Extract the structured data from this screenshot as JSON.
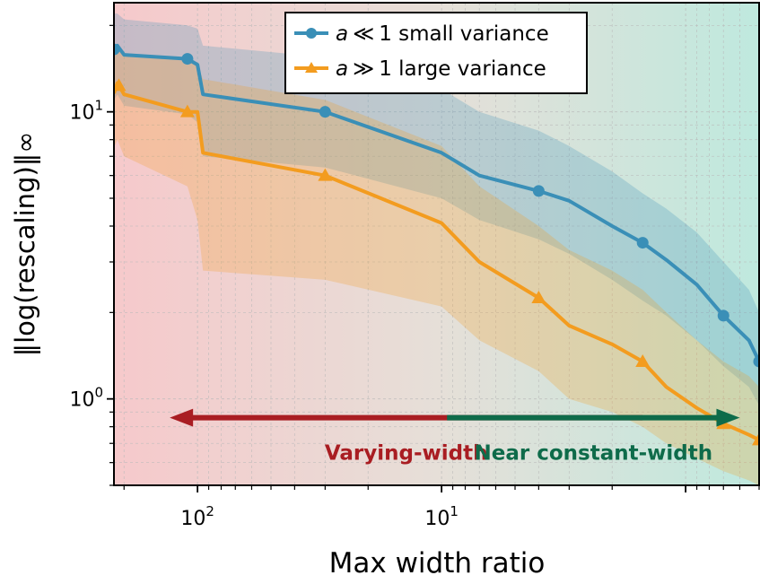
{
  "chart_data": {
    "type": "line",
    "title": "",
    "xlabel": "Max width ratio",
    "ylabel": "‖log(rescaling)‖∞",
    "x_scale": "log",
    "x_reversed": true,
    "y_scale": "log",
    "xlim": [
      220,
      0.5
    ],
    "ylim": [
      0.5,
      24
    ],
    "x_ticks": [
      {
        "value": 100,
        "base": "10",
        "exp": "2"
      },
      {
        "value": 10,
        "base": "10",
        "exp": "1"
      }
    ],
    "y_ticks": [
      {
        "value": 10,
        "base": "10",
        "exp": "1"
      },
      {
        "value": 1,
        "base": "10",
        "exp": "0"
      }
    ],
    "x": [
      220,
      213,
      200,
      110,
      100,
      95,
      30,
      10,
      7,
      4,
      3,
      2,
      1.5,
      1.2,
      0.9,
      0.7,
      0.55,
      0.5
    ],
    "series": [
      {
        "name": "small",
        "label_symbol": "a",
        "label_op": "≪",
        "label_text": "1 small variance",
        "color": "#3a8fb7",
        "marker": "circle",
        "values": [
          16.5,
          17.0,
          15.8,
          15.3,
          14.6,
          11.5,
          10.0,
          7.2,
          6.0,
          5.3,
          4.9,
          4.0,
          3.5,
          3.05,
          2.5,
          1.95,
          1.6,
          1.35
        ],
        "band_low": [
          11.0,
          11.5,
          10.5,
          9.8,
          9.2,
          7.0,
          6.4,
          5.0,
          4.2,
          3.6,
          3.2,
          2.6,
          2.2,
          1.95,
          1.6,
          1.3,
          1.1,
          0.95
        ],
        "band_high": [
          22.0,
          22.0,
          21.0,
          20.0,
          19.5,
          17.0,
          15.5,
          12.0,
          10.0,
          8.6,
          7.6,
          6.2,
          5.2,
          4.6,
          3.8,
          3.0,
          2.4,
          2.0
        ]
      },
      {
        "name": "large",
        "label_symbol": "a",
        "label_op": "≫",
        "label_text": "1 large variance",
        "color": "#f39c1f",
        "marker": "triangle",
        "values": [
          11.6,
          12.6,
          11.5,
          10.0,
          10.0,
          7.2,
          6.0,
          4.1,
          3.0,
          2.25,
          1.8,
          1.55,
          1.35,
          1.1,
          0.93,
          0.82,
          0.75,
          0.72
        ],
        "band_low": [
          7.5,
          8.0,
          7.0,
          5.5,
          4.2,
          2.8,
          2.6,
          2.1,
          1.6,
          1.25,
          1.0,
          0.9,
          0.8,
          0.7,
          0.62,
          0.56,
          0.52,
          0.5
        ],
        "band_high": [
          15.5,
          17.0,
          16.0,
          15.0,
          14.6,
          13.0,
          11.0,
          7.6,
          5.5,
          4.0,
          3.3,
          2.8,
          2.4,
          2.0,
          1.6,
          1.35,
          1.2,
          1.1
        ]
      }
    ],
    "marker_x": [
      {
        "series": "small",
        "x": [
          220,
          110,
          30,
          4,
          1.5,
          0.7,
          0.5
        ]
      },
      {
        "series": "large",
        "x": [
          210,
          110,
          30,
          4,
          1.5,
          0.7,
          0.5
        ]
      }
    ],
    "legend_position": "top-right",
    "grid": true,
    "background_gradient": {
      "left": "#f6c9cb",
      "right": "#bfe9de"
    },
    "annotations": [
      {
        "name": "varying-width",
        "text": "Varying-width",
        "direction": "left",
        "color": "#a91d22",
        "x_from": 1.5,
        "x_to": 130,
        "y": 0.86
      },
      {
        "name": "near-constant",
        "text": "Near constant-width",
        "direction": "right",
        "color": "#0e6b4a",
        "x_from": 9.5,
        "x_to": 0.6,
        "y": 0.86
      }
    ]
  }
}
